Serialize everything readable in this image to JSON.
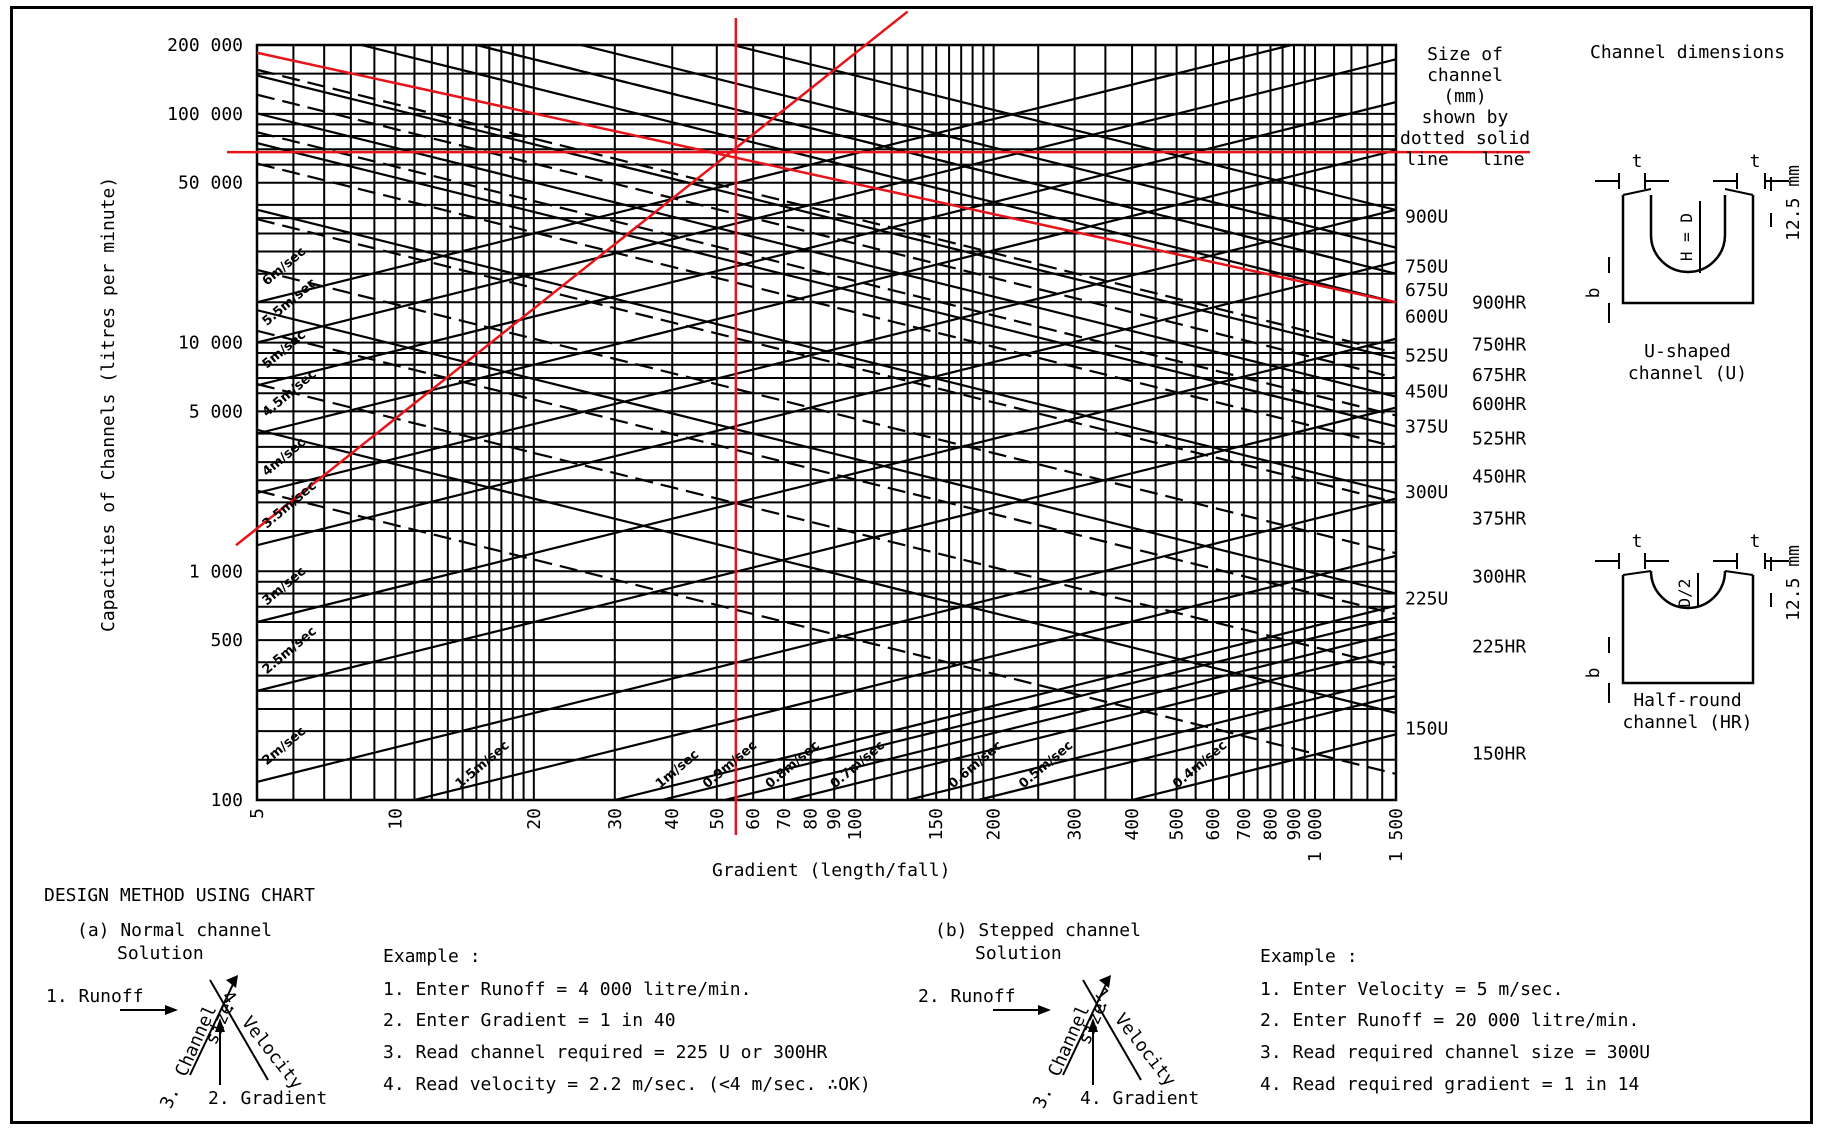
{
  "chart_data": {
    "type": "line",
    "scale": "log-log",
    "ylabel": "Capacities of Channels (litres per minute)",
    "xlabel": "Gradient (length/fall)",
    "xlim": [
      5,
      1500
    ],
    "ylim": [
      100,
      200000
    ],
    "y_ticks": [
      {
        "value": 100,
        "label": "100"
      },
      {
        "value": 500,
        "label": "500"
      },
      {
        "value": 1000,
        "label": "1 000"
      },
      {
        "value": 5000,
        "label": "5 000"
      },
      {
        "value": 10000,
        "label": "10 000"
      },
      {
        "value": 50000,
        "label": "50 000"
      },
      {
        "value": 100000,
        "label": "100 000"
      },
      {
        "value": 200000,
        "label": "200 000"
      }
    ],
    "x_ticks": [
      {
        "value": 5,
        "label": "5"
      },
      {
        "value": 10,
        "label": "10"
      },
      {
        "value": 20,
        "label": "20"
      },
      {
        "value": 30,
        "label": "30"
      },
      {
        "value": 40,
        "label": "40"
      },
      {
        "value": 50,
        "label": "50"
      },
      {
        "value": 60,
        "label": "60"
      },
      {
        "value": 70,
        "label": "70"
      },
      {
        "value": 80,
        "label": "80"
      },
      {
        "value": 90,
        "label": "90"
      },
      {
        "value": 100,
        "label": "100"
      },
      {
        "value": 150,
        "label": "150"
      },
      {
        "value": 200,
        "label": "200"
      },
      {
        "value": 300,
        "label": "300"
      },
      {
        "value": 400,
        "label": "400"
      },
      {
        "value": 500,
        "label": "500"
      },
      {
        "value": 600,
        "label": "600"
      },
      {
        "value": 700,
        "label": "700"
      },
      {
        "value": 800,
        "label": "800"
      },
      {
        "value": 900,
        "label": "900"
      },
      {
        "value": 1000,
        "label": "1 000"
      },
      {
        "value": 1500,
        "label": "1 500"
      }
    ],
    "grid": true,
    "velocity_lines": [
      {
        "label": "6m/sec",
        "x": 5,
        "y": 15000
      },
      {
        "label": "5.5m/sec",
        "x": 5,
        "y": 10000
      },
      {
        "label": "5m/sec",
        "x": 5,
        "y": 6500
      },
      {
        "label": "4.5m/sec",
        "x": 5,
        "y": 4000
      },
      {
        "label": "4m/sec",
        "x": 5,
        "y": 2200
      },
      {
        "label": "3.5m/sec",
        "x": 5,
        "y": 1300
      },
      {
        "label": "3m/sec",
        "x": 5,
        "y": 600
      },
      {
        "label": "2.5m/sec",
        "x": 5,
        "y": 300
      },
      {
        "label": "2m/sec",
        "x": 5,
        "y": 120
      },
      {
        "label": "1.5m/sec",
        "x": 11,
        "y": 100
      },
      {
        "label": "1m/sec",
        "x": 30,
        "y": 100
      },
      {
        "label": "0.9m/sec",
        "x": 38,
        "y": 100
      },
      {
        "label": "0.8m/sec",
        "x": 52,
        "y": 100
      },
      {
        "label": "0.7m/sec",
        "x": 72,
        "y": 100
      },
      {
        "label": "0.6m/sec",
        "x": 130,
        "y": 100
      },
      {
        "label": "0.5m/sec",
        "x": 185,
        "y": 100
      },
      {
        "label": "0.4m/sec",
        "x": 400,
        "y": 100
      }
    ],
    "u_channel_lines": [
      {
        "label": "900U",
        "y_at_1500": 38000
      },
      {
        "label": "750U",
        "y_at_1500": 26000
      },
      {
        "label": "675U",
        "y_at_1500": 20000
      },
      {
        "label": "600U",
        "y_at_1500": 15000
      },
      {
        "label": "525U",
        "y_at_1500": 8500
      },
      {
        "label": "450U",
        "y_at_1500": 5800
      },
      {
        "label": "375U",
        "y_at_1500": 4300
      },
      {
        "label": "300U",
        "y_at_1500": 2200
      },
      {
        "label": "225U",
        "y_at_1500": 800
      },
      {
        "label": "150U",
        "y_at_1500": 240
      }
    ],
    "hr_channel_lines": [
      {
        "label": "900HR",
        "y_at_1500": 20000
      },
      {
        "label": "750HR",
        "y_at_1500": 9000
      },
      {
        "label": "675HR",
        "y_at_1500": 7000
      },
      {
        "label": "600HR",
        "y_at_1500": 4800
      },
      {
        "label": "525HR",
        "y_at_1500": 3500
      },
      {
        "label": "450HR",
        "y_at_1500": 2000
      },
      {
        "label": "375HR",
        "y_at_1500": 1200
      },
      {
        "label": "300HR",
        "y_at_1500": 650
      },
      {
        "label": "225HR",
        "y_at_1500": 380
      },
      {
        "label": "150HR",
        "y_at_1500": 130
      }
    ],
    "slope_velocity": 0.5,
    "slope_channel": -0.5,
    "right_labels_u": [
      {
        "label": "900U",
        "y": 35500
      },
      {
        "label": "750U",
        "y": 21500
      },
      {
        "label": "675U",
        "y": 17000
      },
      {
        "label": "600U",
        "y": 13000
      },
      {
        "label": "525U",
        "y": 8800
      },
      {
        "label": "450U",
        "y": 6100
      },
      {
        "label": "375U",
        "y": 4300
      },
      {
        "label": "300U",
        "y": 2220
      },
      {
        "label": "225U",
        "y": 760
      },
      {
        "label": "150U",
        "y": 205
      }
    ],
    "right_labels_hr": [
      {
        "label": "900HR",
        "y": 15000
      },
      {
        "label": "750HR",
        "y": 9800
      },
      {
        "label": "675HR",
        "y": 7200
      },
      {
        "label": "600HR",
        "y": 5400
      },
      {
        "label": "525HR",
        "y": 3800
      },
      {
        "label": "450HR",
        "y": 2600
      },
      {
        "label": "375HR",
        "y": 1700
      },
      {
        "label": "300HR",
        "y": 950
      },
      {
        "label": "225HR",
        "y": 470
      },
      {
        "label": "150HR",
        "y": 160
      }
    ],
    "legend_heading": [
      "Size of",
      "channel",
      "(mm)",
      "shown by",
      "dotted solid",
      "line   line"
    ],
    "overlay_lines": {
      "color": "#e8141b",
      "vertical_x": 55,
      "horizontal_y": 68000,
      "diagonal_up": {
        "x1": 4.5,
        "y1": 1300,
        "x2": 130,
        "y2": 280000
      },
      "diagonal_down": {
        "x1": 5,
        "y1": 185000,
        "x2": 1500,
        "y2": 15000
      }
    }
  },
  "channel_dimensions": {
    "title": "Channel dimensions",
    "t_label": "t",
    "b_label": "b",
    "mm_label": "12.5 mm",
    "u_depth_label": "H = D",
    "hr_depth_label": "D/2",
    "u_caption": [
      "U-shaped",
      "channel (U)"
    ],
    "hr_caption": [
      "Half-round",
      "channel (HR)"
    ]
  },
  "design_method": {
    "heading": "DESIGN METHOD USING CHART",
    "normal": {
      "heading": "(a) Normal channel",
      "subheading": "Solution",
      "diagram": {
        "runoff": "1. Runoff",
        "channel": "Channel",
        "size": "size",
        "num3": "3.",
        "velocity": "4. Velocity",
        "gradient": "2. Gradient"
      },
      "example_title": "Example :",
      "steps": [
        "1. Enter Runoff = 4 000 litre/min.",
        "2. Enter Gradient = 1 in 40",
        "3. Read channel required = 225 U or 300HR",
        "4. Read velocity = 2.2 m/sec. (<4 m/sec. ∴OK)"
      ]
    },
    "stepped": {
      "heading": "(b) Stepped channel",
      "subheading": "Solution",
      "diagram": {
        "runoff": "2. Runoff",
        "channel": "Channel",
        "size": "size",
        "num3": "3.",
        "velocity": "1. Velocity",
        "gradient": "4. Gradient"
      },
      "example_title": "Example :",
      "steps": [
        "1. Enter Velocity = 5 m/sec.",
        "2. Enter Runoff = 20 000 litre/min.",
        "3. Read required channel size = 300U",
        "4. Read required gradient = 1 in 14"
      ]
    }
  }
}
